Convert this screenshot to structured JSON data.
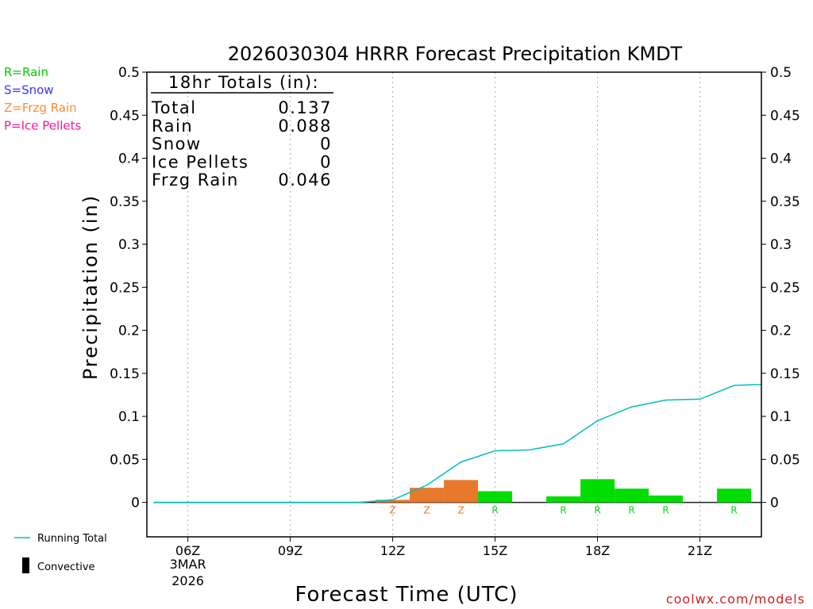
{
  "chart_data": {
    "type": "bar",
    "title": "2026030304 HRRR Forecast Precipitation KMDT",
    "xlabel": "Forecast Time (UTC)",
    "ylabel": "Precipitation (in)",
    "ylim": [
      -0.04,
      0.5
    ],
    "y_ticks": [
      "0.5",
      "0.45",
      "0.4",
      "0.35",
      "0.3",
      "0.25",
      "0.2",
      "0.15",
      "0.1",
      "0.05",
      "0"
    ],
    "y_tick_values": [
      0.5,
      0.45,
      0.4,
      0.35,
      0.3,
      0.25,
      0.2,
      0.15,
      0.1,
      0.05,
      0
    ],
    "x_range_hours": [
      4.8,
      22.8
    ],
    "x_ticks": [
      {
        "hour": 6,
        "label": "06Z",
        "sub1": "3MAR",
        "sub2": "2026"
      },
      {
        "hour": 9,
        "label": "09Z"
      },
      {
        "hour": 12,
        "label": "12Z"
      },
      {
        "hour": 15,
        "label": "15Z"
      },
      {
        "hour": 18,
        "label": "18Z"
      },
      {
        "hour": 21,
        "label": "21Z"
      }
    ],
    "legend_types": [
      {
        "text": "R=Rain",
        "color": "#00cc00"
      },
      {
        "text": "S=Snow",
        "color": "#3333ff"
      },
      {
        "text": "Z=Frzg Rain",
        "color": "#ff8c33"
      },
      {
        "text": "P=Ice Pellets",
        "color": "#ff1493"
      }
    ],
    "legend_lines": [
      {
        "text": "Running Total",
        "color": "#00bfbf"
      },
      {
        "text": "Convective",
        "color": "#000000"
      }
    ],
    "totals": {
      "heading": "18hr Totals (in):",
      "rows": [
        {
          "label": "Total",
          "value": "0.137"
        },
        {
          "label": "Rain",
          "value": "0.088"
        },
        {
          "label": "Snow",
          "value": "0"
        },
        {
          "label": "Ice Pellets",
          "value": "0"
        },
        {
          "label": "Frzg Rain",
          "value": "0.046"
        }
      ]
    },
    "hourly_bars": [
      {
        "hour": 12,
        "value": 0.003,
        "type": "Z",
        "color": "#e8782a"
      },
      {
        "hour": 13,
        "value": 0.017,
        "type": "Z",
        "color": "#e8782a"
      },
      {
        "hour": 14,
        "value": 0.026,
        "type": "Z",
        "color": "#e8782a"
      },
      {
        "hour": 15,
        "value": 0.013,
        "type": "R",
        "color": "#00dd00"
      },
      {
        "hour": 16,
        "value": 0.0,
        "type": "",
        "color": "#00dd00"
      },
      {
        "hour": 17,
        "value": 0.007,
        "type": "R",
        "color": "#00dd00"
      },
      {
        "hour": 18,
        "value": 0.027,
        "type": "R",
        "color": "#00dd00"
      },
      {
        "hour": 19,
        "value": 0.016,
        "type": "R",
        "color": "#00dd00"
      },
      {
        "hour": 20,
        "value": 0.008,
        "type": "R",
        "color": "#00dd00"
      },
      {
        "hour": 21,
        "value": 0.0,
        "type": "",
        "color": "#00dd00"
      },
      {
        "hour": 22,
        "value": 0.016,
        "type": "R",
        "color": "#00dd00"
      }
    ],
    "running_total": {
      "hours": [
        5,
        6,
        7,
        8,
        9,
        10,
        11,
        12,
        13,
        14,
        15,
        16,
        17,
        18,
        19,
        20,
        21,
        22,
        22.8
      ],
      "values": [
        0,
        0,
        0,
        0,
        0,
        0,
        0,
        0.003,
        0.02,
        0.047,
        0.06,
        0.061,
        0.068,
        0.095,
        0.111,
        0.119,
        0.12,
        0.136,
        0.137
      ]
    },
    "colors": {
      "running_total": "#00bfbf",
      "rain": "#00dd00",
      "frzg": "#e8782a",
      "grid": "#aaaaaa",
      "axis": "#000000"
    }
  },
  "watermark": "coolwx.com/models"
}
